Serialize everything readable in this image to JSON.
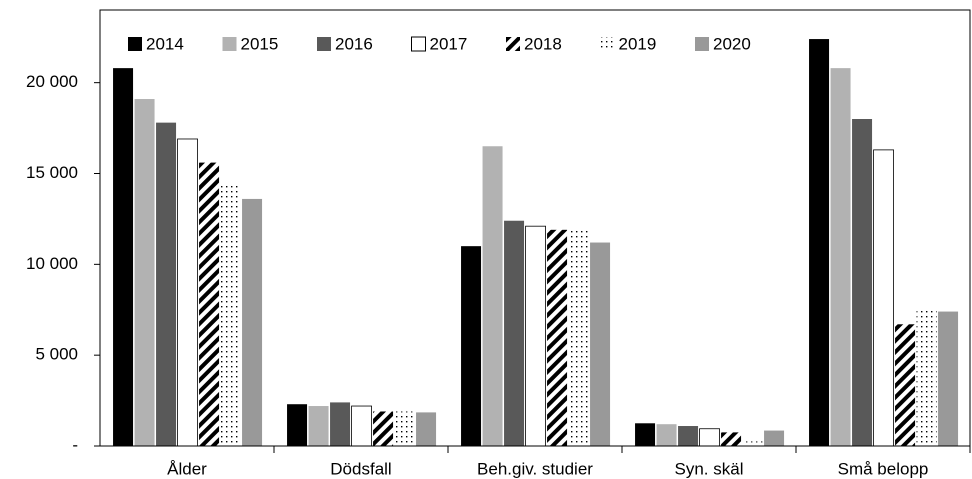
{
  "chart_data": {
    "type": "bar",
    "categories": [
      "Ålder",
      "Dödsfall",
      "Beh.giv. studier",
      "Syn. skäl",
      "Små belopp"
    ],
    "series": [
      {
        "name": "2014",
        "color": "#000000",
        "values": [
          20800,
          2300,
          11000,
          1250,
          22400
        ]
      },
      {
        "name": "2015",
        "color": "#b2b2b2",
        "values": [
          19100,
          2200,
          16500,
          1200,
          20800
        ]
      },
      {
        "name": "2016",
        "color": "#595959",
        "values": [
          17800,
          2400,
          12400,
          1100,
          18000
        ]
      },
      {
        "name": "2017",
        "color": "#ffffff",
        "values": [
          16900,
          2200,
          12100,
          950,
          16300
        ]
      },
      {
        "name": "2018",
        "color": "#000000",
        "pattern": "stripes",
        "values": [
          15600,
          1900,
          11900,
          750,
          6700
        ]
      },
      {
        "name": "2019",
        "color": "#000000",
        "pattern": "dots",
        "values": [
          14400,
          1900,
          12000,
          250,
          7500
        ]
      },
      {
        "name": "2020",
        "color": "#999999",
        "values": [
          13600,
          1850,
          11200,
          850,
          7400
        ]
      }
    ],
    "ylim": [
      0,
      24000
    ],
    "yticks": [
      {
        "value": 0,
        "label": "-"
      },
      {
        "value": 5000,
        "label": "5 000"
      },
      {
        "value": 10000,
        "label": "10 000"
      },
      {
        "value": 15000,
        "label": "15 000"
      },
      {
        "value": 20000,
        "label": "20 000"
      }
    ],
    "grid": false,
    "legend": "top-left"
  }
}
